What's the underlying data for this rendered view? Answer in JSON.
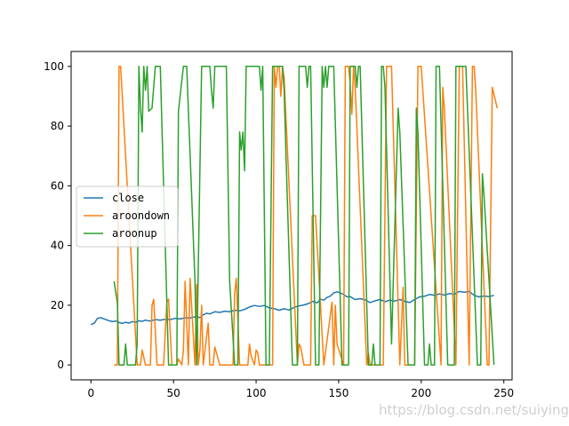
{
  "watermark": "https://blog.csdn.net/suiyingy",
  "chart_data": {
    "type": "line",
    "title": "",
    "xlabel": "",
    "ylabel": "",
    "xlim": [
      -12,
      255
    ],
    "ylim": [
      -5,
      105
    ],
    "x_ticks": [
      0,
      50,
      100,
      150,
      200,
      250
    ],
    "y_ticks": [
      0,
      20,
      40,
      60,
      80,
      100
    ],
    "grid": false,
    "legend_position": "center-left",
    "series": [
      {
        "name": "close",
        "color": "#1f77b4",
        "points": [
          [
            0,
            13.5
          ],
          [
            2,
            14
          ],
          [
            4,
            15.6
          ],
          [
            6,
            15.8
          ],
          [
            9,
            15.2
          ],
          [
            11,
            14.8
          ],
          [
            13,
            14.5
          ],
          [
            15,
            14.7
          ],
          [
            17,
            14.2
          ],
          [
            19,
            13.9
          ],
          [
            21,
            14.3
          ],
          [
            23,
            14
          ],
          [
            25,
            14.5
          ],
          [
            27,
            14.3
          ],
          [
            29,
            14.8
          ],
          [
            31,
            14.6
          ],
          [
            33,
            15
          ],
          [
            35,
            14.7
          ],
          [
            37,
            14.9
          ],
          [
            39,
            15.2
          ],
          [
            42,
            15
          ],
          [
            45,
            15.3
          ],
          [
            48,
            15.2
          ],
          [
            51,
            15.6
          ],
          [
            54,
            15.4
          ],
          [
            57,
            15.8
          ],
          [
            60,
            15.7
          ],
          [
            63,
            16.1
          ],
          [
            66,
            15.9
          ],
          [
            68,
            16.8
          ],
          [
            70,
            17.3
          ],
          [
            72,
            17.1
          ],
          [
            75,
            17.8
          ],
          [
            78,
            17.6
          ],
          [
            81,
            18
          ],
          [
            84,
            17.8
          ],
          [
            87,
            18.3
          ],
          [
            90,
            18.1
          ],
          [
            93,
            18.6
          ],
          [
            96,
            19.4
          ],
          [
            99,
            19.9
          ],
          [
            102,
            19.6
          ],
          [
            105,
            19.9
          ],
          [
            108,
            19.1
          ],
          [
            111,
            18.8
          ],
          [
            114,
            18.3
          ],
          [
            117,
            18.8
          ],
          [
            120,
            18.4
          ],
          [
            123,
            19.3
          ],
          [
            126,
            19.8
          ],
          [
            129,
            20.1
          ],
          [
            132,
            20.6
          ],
          [
            134,
            21.3
          ],
          [
            137,
            20.8
          ],
          [
            139,
            22
          ],
          [
            141,
            21.7
          ],
          [
            143,
            22.6
          ],
          [
            145,
            23.1
          ],
          [
            147,
            24.1
          ],
          [
            149,
            24.5
          ],
          [
            151,
            24.1
          ],
          [
            153,
            23.6
          ],
          [
            155,
            22.8
          ],
          [
            157,
            22.9
          ],
          [
            160,
            21.9
          ],
          [
            163,
            22.2
          ],
          [
            166,
            21.8
          ],
          [
            169,
            20.9
          ],
          [
            172,
            21.5
          ],
          [
            175,
            21.9
          ],
          [
            178,
            21.2
          ],
          [
            181,
            21.7
          ],
          [
            184,
            21.4
          ],
          [
            187,
            21.9
          ],
          [
            190,
            21.3
          ],
          [
            193,
            20.9
          ],
          [
            196,
            21.9
          ],
          [
            199,
            22.8
          ],
          [
            202,
            23
          ],
          [
            205,
            23.6
          ],
          [
            208,
            23.3
          ],
          [
            211,
            23.8
          ],
          [
            214,
            23.4
          ],
          [
            217,
            23.9
          ],
          [
            220,
            23.7
          ],
          [
            223,
            24.6
          ],
          [
            226,
            24.3
          ],
          [
            229,
            24.6
          ],
          [
            232,
            23.3
          ],
          [
            235,
            22.8
          ],
          [
            238,
            23.1
          ],
          [
            241,
            22.9
          ],
          [
            244,
            23.3
          ]
        ]
      },
      {
        "name": "aroondown",
        "color": "#ff7f0e",
        "points": [
          [
            14,
            0
          ],
          [
            16,
            0
          ],
          [
            17,
            100
          ],
          [
            18,
            100
          ],
          [
            28,
            0
          ],
          [
            30,
            0
          ],
          [
            31,
            5
          ],
          [
            33,
            0
          ],
          [
            36,
            0
          ],
          [
            37,
            20
          ],
          [
            38,
            22
          ],
          [
            40,
            0
          ],
          [
            44,
            0
          ],
          [
            46,
            21
          ],
          [
            47,
            22
          ],
          [
            49,
            0
          ],
          [
            52,
            0
          ],
          [
            53,
            2
          ],
          [
            55,
            0
          ],
          [
            56,
            5
          ],
          [
            57,
            28
          ],
          [
            59,
            0
          ],
          [
            60,
            29
          ],
          [
            63,
            0
          ],
          [
            64,
            27
          ],
          [
            65,
            0
          ],
          [
            66,
            5
          ],
          [
            67,
            20
          ],
          [
            68,
            0
          ],
          [
            71,
            14
          ],
          [
            72,
            0
          ],
          [
            74,
            0
          ],
          [
            75,
            6
          ],
          [
            76,
            4
          ],
          [
            78,
            0
          ],
          [
            86,
            0
          ],
          [
            87,
            24
          ],
          [
            88,
            29
          ],
          [
            90,
            0
          ],
          [
            95,
            0
          ],
          [
            96,
            7
          ],
          [
            97,
            3
          ],
          [
            99,
            0
          ],
          [
            100,
            5
          ],
          [
            101,
            4
          ],
          [
            102,
            0
          ],
          [
            110,
            0
          ],
          [
            111,
            100
          ],
          [
            112,
            93
          ],
          [
            113,
            100
          ],
          [
            114,
            100
          ],
          [
            115,
            90
          ],
          [
            116,
            100
          ],
          [
            117,
            96
          ],
          [
            125,
            0
          ],
          [
            126,
            7
          ],
          [
            127,
            6
          ],
          [
            129,
            0
          ],
          [
            133,
            0
          ],
          [
            134,
            50
          ],
          [
            136,
            50
          ],
          [
            141,
            0
          ],
          [
            146,
            21
          ],
          [
            147,
            0
          ],
          [
            148,
            20
          ],
          [
            149,
            7
          ],
          [
            153,
            0
          ],
          [
            154,
            100
          ],
          [
            156,
            100
          ],
          [
            157,
            94
          ],
          [
            158,
            84
          ],
          [
            159,
            100
          ],
          [
            160,
            93
          ],
          [
            167,
            0
          ],
          [
            168,
            4
          ],
          [
            169,
            0
          ],
          [
            177,
            0
          ],
          [
            179,
            100
          ],
          [
            182,
            100
          ],
          [
            187,
            0
          ],
          [
            189,
            26
          ],
          [
            190,
            0
          ],
          [
            196,
            0
          ],
          [
            198,
            100
          ],
          [
            200,
            100
          ],
          [
            212,
            0
          ],
          [
            213,
            93
          ],
          [
            214,
            86
          ],
          [
            221,
            0
          ],
          [
            223,
            100
          ],
          [
            225,
            100
          ],
          [
            229,
            0
          ],
          [
            231,
            100
          ],
          [
            232,
            100
          ],
          [
            233,
            92
          ],
          [
            240,
            0
          ],
          [
            241,
            0
          ],
          [
            243,
            93
          ],
          [
            246,
            86
          ]
        ]
      },
      {
        "name": "aroonup",
        "color": "#2ca02c",
        "points": [
          [
            14,
            28
          ],
          [
            16,
            21
          ],
          [
            17,
            0
          ],
          [
            20,
            0
          ],
          [
            21,
            7
          ],
          [
            22,
            0
          ],
          [
            23,
            0
          ],
          [
            27,
            0
          ],
          [
            28,
            7
          ],
          [
            29,
            100
          ],
          [
            30,
            86
          ],
          [
            31,
            78
          ],
          [
            32,
            100
          ],
          [
            33,
            92
          ],
          [
            34,
            100
          ],
          [
            35,
            85
          ],
          [
            37,
            86
          ],
          [
            39,
            100
          ],
          [
            42,
            100
          ],
          [
            47,
            0
          ],
          [
            52,
            0
          ],
          [
            53,
            85
          ],
          [
            56,
            100
          ],
          [
            58,
            100
          ],
          [
            63,
            28
          ],
          [
            64,
            0
          ],
          [
            67,
            100
          ],
          [
            72,
            100
          ],
          [
            73,
            92
          ],
          [
            74,
            86
          ],
          [
            75,
            100
          ],
          [
            77,
            100
          ],
          [
            82,
            100
          ],
          [
            84,
            28
          ],
          [
            87,
            0
          ],
          [
            89,
            0
          ],
          [
            90,
            78
          ],
          [
            91,
            72
          ],
          [
            92,
            78
          ],
          [
            93,
            65
          ],
          [
            94,
            100
          ],
          [
            100,
            100
          ],
          [
            102,
            100
          ],
          [
            103,
            92
          ],
          [
            104,
            100
          ],
          [
            106,
            0
          ],
          [
            108,
            0
          ],
          [
            110,
            100
          ],
          [
            116,
            100
          ],
          [
            117,
            92
          ],
          [
            118,
            72
          ],
          [
            122,
            0
          ],
          [
            125,
            0
          ],
          [
            126,
            100
          ],
          [
            128,
            100
          ],
          [
            130,
            100
          ],
          [
            131,
            93
          ],
          [
            132,
            100
          ],
          [
            133,
            100
          ],
          [
            136,
            0
          ],
          [
            138,
            0
          ],
          [
            140,
            100
          ],
          [
            141,
            93
          ],
          [
            142,
            100
          ],
          [
            143,
            93
          ],
          [
            144,
            100
          ],
          [
            145,
            100
          ],
          [
            147,
            100
          ],
          [
            152,
            0
          ],
          [
            156,
            0
          ],
          [
            157,
            100
          ],
          [
            158,
            100
          ],
          [
            160,
            100
          ],
          [
            161,
            93
          ],
          [
            162,
            100
          ],
          [
            163,
            100
          ],
          [
            168,
            0
          ],
          [
            170,
            0
          ],
          [
            171,
            7
          ],
          [
            172,
            0
          ],
          [
            175,
            0
          ],
          [
            176,
            100
          ],
          [
            177,
            100
          ],
          [
            178,
            93
          ],
          [
            182,
            7
          ],
          [
            186,
            86
          ],
          [
            187,
            78
          ],
          [
            192,
            0
          ],
          [
            196,
            0
          ],
          [
            197,
            86
          ],
          [
            198,
            78
          ],
          [
            202,
            0
          ],
          [
            204,
            0
          ],
          [
            205,
            7
          ],
          [
            206,
            0
          ],
          [
            208,
            0
          ],
          [
            209,
            100
          ],
          [
            211,
            100
          ],
          [
            216,
            0
          ],
          [
            220,
            0
          ],
          [
            221,
            100
          ],
          [
            227,
            100
          ],
          [
            234,
            0
          ],
          [
            236,
            0
          ],
          [
            237,
            64
          ],
          [
            238,
            57
          ],
          [
            244,
            0
          ]
        ]
      }
    ]
  }
}
